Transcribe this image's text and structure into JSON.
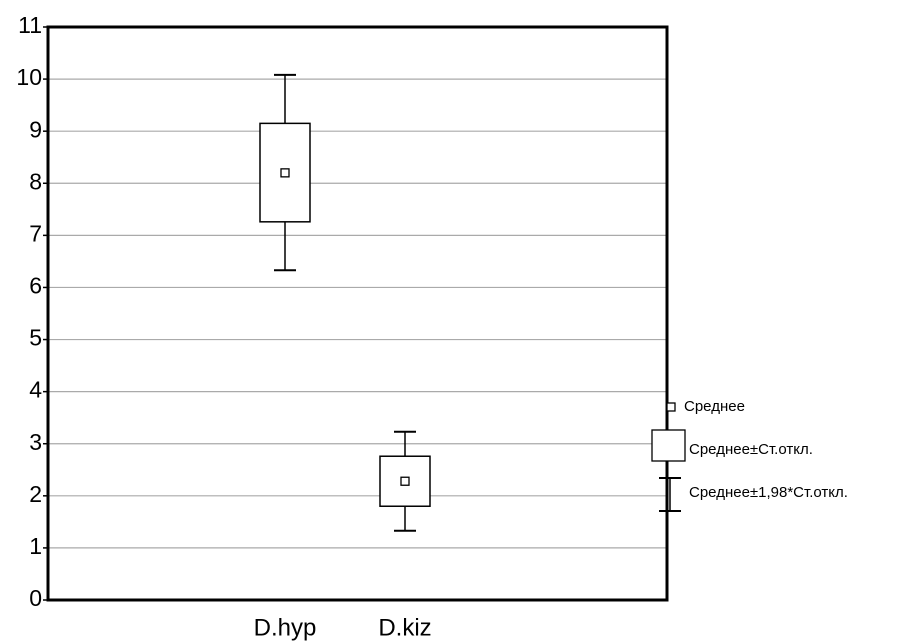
{
  "chart_data": {
    "type": "box",
    "categories": [
      "D.hyp",
      "D.kiz"
    ],
    "mean": [
      8.2,
      2.28
    ],
    "box_low": [
      7.26,
      1.8
    ],
    "box_high": [
      9.15,
      2.76
    ],
    "whisker_low": [
      6.33,
      1.33
    ],
    "whisker_high": [
      10.08,
      3.23
    ],
    "ylim": [
      0,
      11
    ],
    "yticks": [
      0,
      1,
      2,
      3,
      4,
      5,
      6,
      7,
      8,
      9,
      10,
      11
    ],
    "grid": true,
    "legend": [
      "Среднее",
      "Среднее±Ст.откл.",
      "Среднее±1,98*Ст.откл."
    ],
    "legend_position": "right"
  }
}
